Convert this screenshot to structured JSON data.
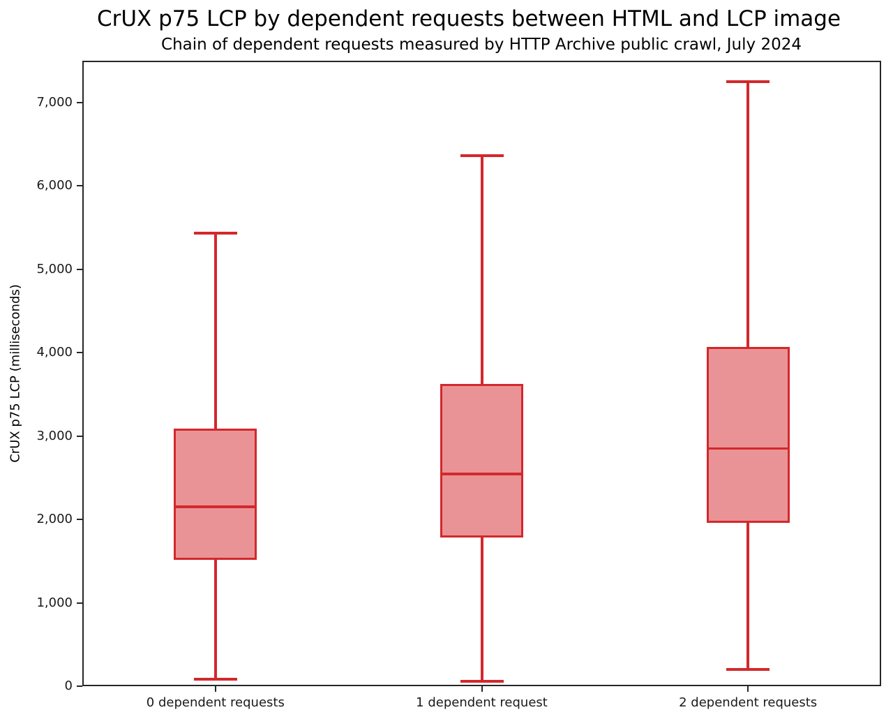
{
  "title": "CrUX p75 LCP by dependent requests between HTML and LCP image",
  "subtitle": "Chain of dependent requests measured by HTTP Archive public crawl, July 2024",
  "chart_data": {
    "type": "box",
    "title": "CrUX p75 LCP by dependent requests between HTML and LCP image",
    "subtitle": "Chain of dependent requests measured by HTTP Archive public crawl, July 2024",
    "xlabel": "",
    "ylabel": "CrUX p75 LCP (milliseconds)",
    "ylim": [
      0,
      7500
    ],
    "grid": false,
    "legend": "none",
    "yticks": [
      0,
      1000,
      2000,
      3000,
      4000,
      5000,
      6000,
      7000
    ],
    "ytick_labels": [
      "0",
      "1,000",
      "2,000",
      "3,000",
      "4,000",
      "5,000",
      "6,000",
      "7,000"
    ],
    "categories": [
      "0 dependent requests",
      "1 dependent request",
      "2 dependent requests"
    ],
    "boxes": [
      {
        "label": "0 dependent requests",
        "whisker_low": 85,
        "q1": 1515,
        "median": 2150,
        "q3": 3090,
        "whisker_high": 5430
      },
      {
        "label": "1 dependent request",
        "whisker_low": 60,
        "q1": 1785,
        "median": 2545,
        "q3": 3625,
        "whisker_high": 6360
      },
      {
        "label": "2 dependent requests",
        "whisker_low": 200,
        "q1": 1960,
        "median": 2850,
        "q3": 4070,
        "whisker_high": 7250
      }
    ],
    "colors": {
      "box_edge": "#d3282c",
      "box_fill": "#ea9396",
      "axis": "#262626",
      "text": "#1a1a1a",
      "background": "#ffffff"
    }
  }
}
